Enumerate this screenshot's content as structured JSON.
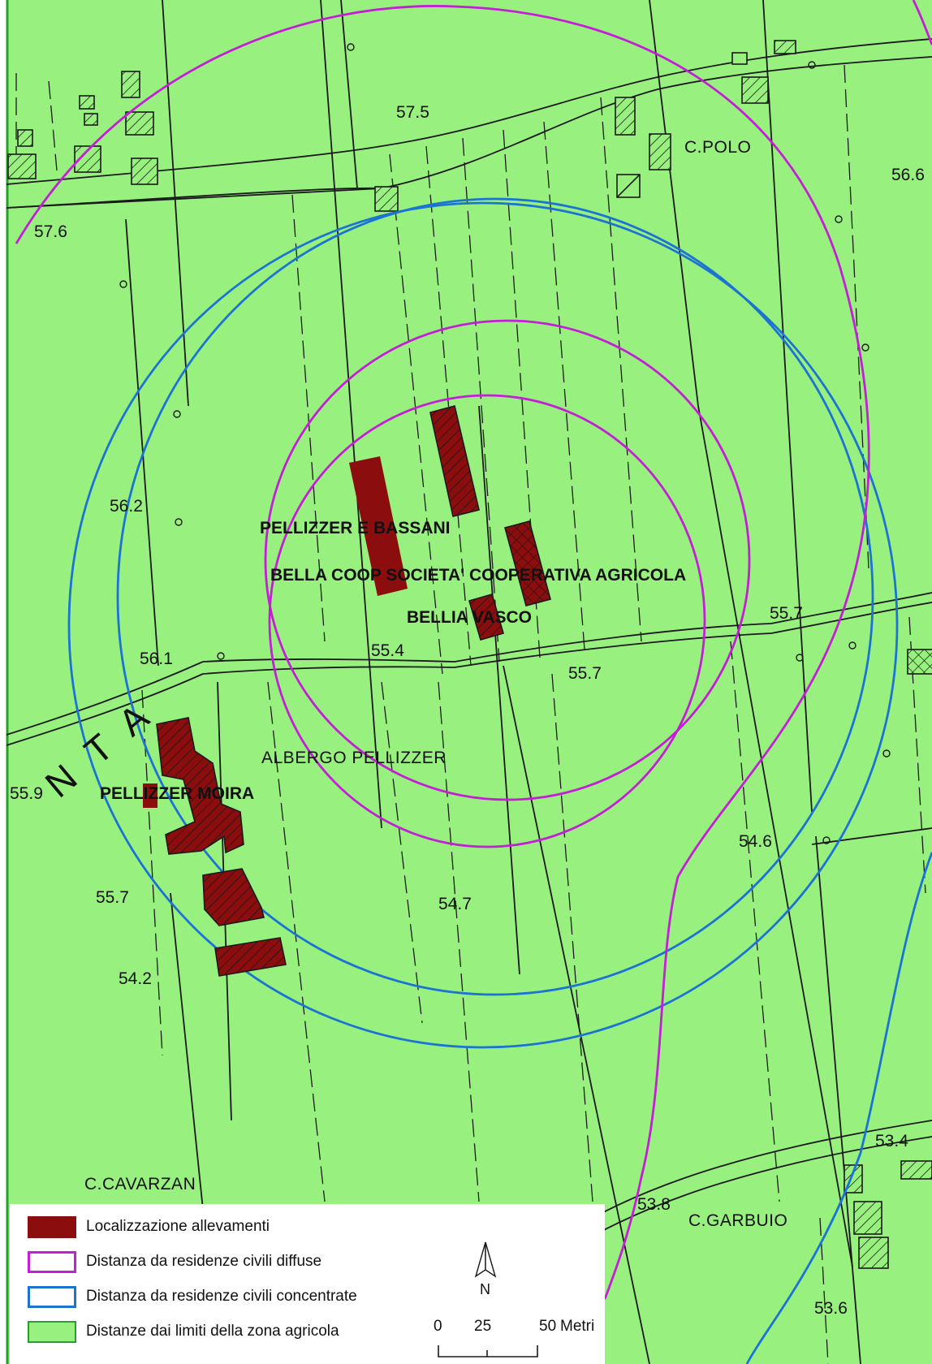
{
  "colors": {
    "agricultural_area": "#98f07e",
    "farm": "#8b0d0d",
    "diffuse_buffer": "#c41ed6",
    "concentrated_buffer": "#1c74d2",
    "zone_limit": "#25a02a",
    "linework": "#1a1a1a"
  },
  "road_label": "NTA",
  "elevations": {
    "e1": "57.5",
    "e2": "57.6",
    "e3": "56.6",
    "e4": "56.2",
    "e5": "56.1",
    "e6": "55.4",
    "e7": "55.7",
    "e8": "55.7",
    "e9": "55.9",
    "e10": "54.6",
    "e11": "55.7",
    "e12": "54.7",
    "e13": "54.2",
    "e14": "53.4",
    "e15": "53.8",
    "e16": "53.6"
  },
  "places": {
    "polo": "C.POLO",
    "albergo": "ALBERGO PELLIZZER",
    "cavarzan": "C.CAVARZAN",
    "garbuio": "C.GARBUIO"
  },
  "farms": {
    "pellizzer_bassani": "PELLIZZER E BASSANI",
    "bella_coop": "BELLA COOP SOCIETA' COOPERATIVA AGRICOLA",
    "bellia_vasco": "BELLIA VASCO",
    "pellizzer_moira": "PELLIZZER MOIRA"
  },
  "legend": {
    "items": [
      {
        "label": "Localizzazione allevamenti",
        "swatch": "farm"
      },
      {
        "label": "Distanza da residenze civili diffuse",
        "swatch": "diffuse_buffer"
      },
      {
        "label": "Distanza da residenze civili concentrate",
        "swatch": "concentrated_buffer"
      },
      {
        "label": "Distanze dai limiti della zona agricola",
        "swatch": "zone_limit"
      }
    ],
    "north_label": "N",
    "scale": {
      "ticks": [
        "0",
        "25",
        "50"
      ],
      "unit": "Metri"
    }
  }
}
